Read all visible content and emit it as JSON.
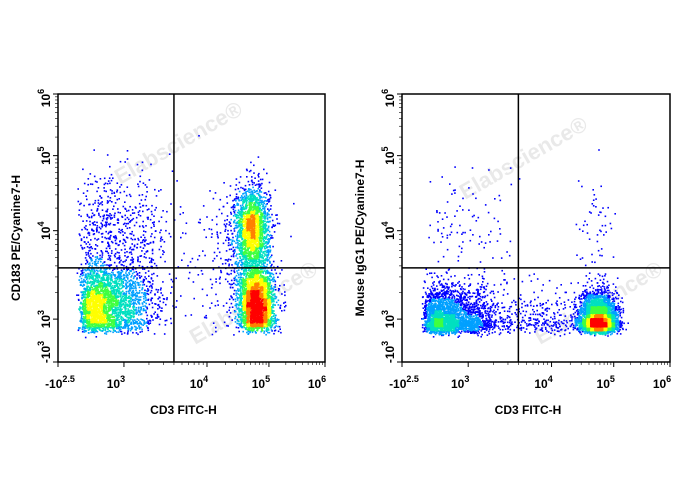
{
  "watermark": "Elabscience®",
  "colormap": [
    "#0000ff",
    "#00a0ff",
    "#00e0c0",
    "#40ff40",
    "#ffff00",
    "#ff8000",
    "#ff0000"
  ],
  "chart_data": [
    {
      "type": "scatter",
      "subtype": "flow-cytometry density dot plot",
      "xlabel": "CD3 FITC-H",
      "ylabel": "CD183 PE/Cyanine7-H",
      "x_scale": "biexponential",
      "y_scale": "biexponential",
      "x_ticks": [
        {
          "base": "-10",
          "exp": "2.5"
        },
        {
          "base": "10",
          "exp": "3"
        },
        {
          "base": "10",
          "exp": "4"
        },
        {
          "base": "10",
          "exp": "5"
        },
        {
          "base": "10",
          "exp": "6"
        }
      ],
      "y_ticks": [
        {
          "base": "10",
          "exp": "6"
        },
        {
          "base": "10",
          "exp": "5"
        },
        {
          "base": "10",
          "exp": "4"
        },
        {
          "base": "10",
          "exp": "3"
        },
        {
          "base": "-10",
          "exp": "3"
        }
      ],
      "quadrant_gate": {
        "x": 4000,
        "y": 3800
      },
      "populations": [
        {
          "x": 600,
          "y": 1500,
          "x_sd_decades": 0.28,
          "y_sd_decades": 0.22,
          "count": 2600
        },
        {
          "x": 800,
          "y": 8000,
          "x_sd_decades": 0.35,
          "y_sd_decades": 0.4,
          "count": 700
        },
        {
          "x": 52000,
          "y": 10000,
          "x_sd_decades": 0.14,
          "y_sd_decades": 0.3,
          "count": 2200
        },
        {
          "x": 62000,
          "y": 1500,
          "x_sd_decades": 0.15,
          "y_sd_decades": 0.2,
          "count": 2600
        },
        {
          "x": 20000,
          "y": 4000,
          "x_sd_decades": 0.35,
          "y_sd_decades": 0.45,
          "count": 200
        }
      ]
    },
    {
      "type": "scatter",
      "subtype": "flow-cytometry density dot plot",
      "xlabel": "CD3 FITC-H",
      "ylabel": "Mouse IgG1 PE/Cyanine7-H",
      "x_scale": "biexponential",
      "y_scale": "biexponential",
      "x_ticks": [
        {
          "base": "-10",
          "exp": "2.5"
        },
        {
          "base": "10",
          "exp": "3"
        },
        {
          "base": "10",
          "exp": "4"
        },
        {
          "base": "10",
          "exp": "5"
        },
        {
          "base": "10",
          "exp": "6"
        }
      ],
      "y_ticks": [
        {
          "base": "10",
          "exp": "6"
        },
        {
          "base": "10",
          "exp": "5"
        },
        {
          "base": "10",
          "exp": "4"
        },
        {
          "base": "10",
          "exp": "3"
        },
        {
          "base": "-10",
          "exp": "3"
        }
      ],
      "quadrant_gate": {
        "x": 4000,
        "y": 3800
      },
      "populations": [
        {
          "x": 600,
          "y": 1000,
          "x_sd_decades": 0.28,
          "y_sd_decades": 0.18,
          "count": 2800
        },
        {
          "x": 900,
          "y": 8000,
          "x_sd_decades": 0.3,
          "y_sd_decades": 0.45,
          "count": 120
        },
        {
          "x": 55000,
          "y": 950,
          "x_sd_decades": 0.15,
          "y_sd_decades": 0.16,
          "count": 4000
        },
        {
          "x": 50000,
          "y": 10000,
          "x_sd_decades": 0.15,
          "y_sd_decades": 0.4,
          "count": 60
        },
        {
          "x": 8000,
          "y": 1000,
          "x_sd_decades": 0.3,
          "y_sd_decades": 0.2,
          "count": 250
        }
      ]
    }
  ]
}
